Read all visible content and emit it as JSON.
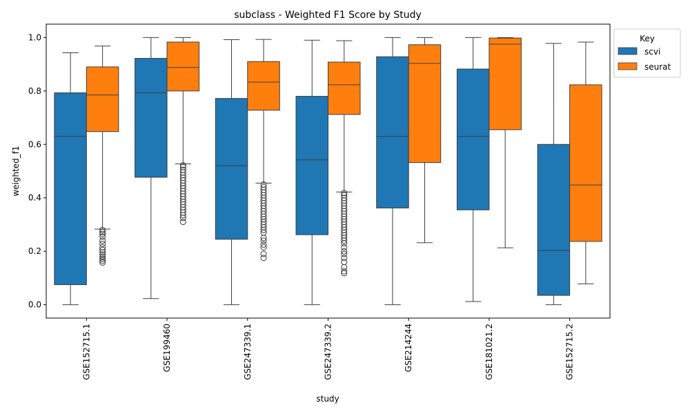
{
  "chart_data": {
    "type": "boxplot",
    "title": "subclass - Weighted F1 Score by Study",
    "xlabel": "study",
    "ylabel": "weighted_f1",
    "ylim": [
      -0.05,
      1.05
    ],
    "yticks": [
      0.0,
      0.2,
      0.4,
      0.6,
      0.8,
      1.0
    ],
    "ytick_labels": [
      "0.0",
      "0.2",
      "0.4",
      "0.6",
      "0.8",
      "1.0"
    ],
    "categories": [
      "GSE152715.1",
      "GSE199460",
      "GSE247339.1",
      "GSE247339.2",
      "GSE214244",
      "GSE181021.2",
      "GSE152715.2"
    ],
    "legend": {
      "title": "Key",
      "position": "top-right, outside plot"
    },
    "grid": false,
    "series": [
      {
        "name": "scvi",
        "color": "#1f77b4",
        "boxes": [
          {
            "whislo": 0.0,
            "q1": 0.075,
            "med": 0.63,
            "q3": 0.793,
            "whishi": 0.943,
            "fliers": []
          },
          {
            "whislo": 0.023,
            "q1": 0.477,
            "med": 0.793,
            "q3": 0.922,
            "whishi": 1.0,
            "fliers": []
          },
          {
            "whislo": 0.0,
            "q1": 0.245,
            "med": 0.52,
            "q3": 0.772,
            "whishi": 0.992,
            "fliers": []
          },
          {
            "whislo": 0.0,
            "q1": 0.262,
            "med": 0.542,
            "q3": 0.78,
            "whishi": 0.99,
            "fliers": []
          },
          {
            "whislo": 0.0,
            "q1": 0.362,
            "med": 0.63,
            "q3": 0.928,
            "whishi": 1.0,
            "fliers": []
          },
          {
            "whislo": 0.012,
            "q1": 0.355,
            "med": 0.63,
            "q3": 0.882,
            "whishi": 1.0,
            "fliers": []
          },
          {
            "whislo": 0.0,
            "q1": 0.035,
            "med": 0.203,
            "q3": 0.6,
            "whishi": 0.978,
            "fliers": []
          }
        ]
      },
      {
        "name": "seurat",
        "color": "#ff7f0e",
        "boxes": [
          {
            "whislo": 0.283,
            "q1": 0.648,
            "med": 0.785,
            "q3": 0.89,
            "whishi": 0.968,
            "fliers": [
              0.158,
              0.165,
              0.172,
              0.18,
              0.188,
              0.196,
              0.205,
              0.215,
              0.228,
              0.24,
              0.255,
              0.265,
              0.272,
              0.28
            ]
          },
          {
            "whislo": 0.527,
            "q1": 0.8,
            "med": 0.888,
            "q3": 0.983,
            "whishi": 1.0,
            "fliers": [
              0.31,
              0.325,
              0.335,
              0.345,
              0.355,
              0.365,
              0.375,
              0.385,
              0.395,
              0.405,
              0.415,
              0.425,
              0.435,
              0.445,
              0.455,
              0.465,
              0.475,
              0.485,
              0.495,
              0.505,
              0.515,
              0.522
            ]
          },
          {
            "whislo": 0.455,
            "q1": 0.728,
            "med": 0.833,
            "q3": 0.91,
            "whishi": 0.993,
            "fliers": [
              0.175,
              0.19,
              0.215,
              0.225,
              0.24,
              0.25,
              0.27,
              0.28,
              0.29,
              0.3,
              0.31,
              0.32,
              0.33,
              0.34,
              0.35,
              0.36,
              0.37,
              0.38,
              0.39,
              0.4,
              0.41,
              0.42,
              0.43,
              0.44,
              0.45
            ]
          },
          {
            "whislo": 0.422,
            "q1": 0.712,
            "med": 0.823,
            "q3": 0.908,
            "whishi": 0.988,
            "fliers": [
              0.118,
              0.125,
              0.14,
              0.16,
              0.175,
              0.19,
              0.2,
              0.215,
              0.23,
              0.24,
              0.25,
              0.26,
              0.27,
              0.28,
              0.29,
              0.3,
              0.31,
              0.32,
              0.33,
              0.34,
              0.35,
              0.36,
              0.37,
              0.38,
              0.39,
              0.4,
              0.41,
              0.418
            ]
          },
          {
            "whislo": 0.232,
            "q1": 0.532,
            "med": 0.903,
            "q3": 0.973,
            "whishi": 1.0,
            "fliers": []
          },
          {
            "whislo": 0.213,
            "q1": 0.655,
            "med": 0.975,
            "q3": 0.998,
            "whishi": 1.0,
            "fliers": []
          },
          {
            "whislo": 0.078,
            "q1": 0.237,
            "med": 0.448,
            "q3": 0.823,
            "whishi": 0.983,
            "fliers": []
          }
        ]
      }
    ]
  }
}
